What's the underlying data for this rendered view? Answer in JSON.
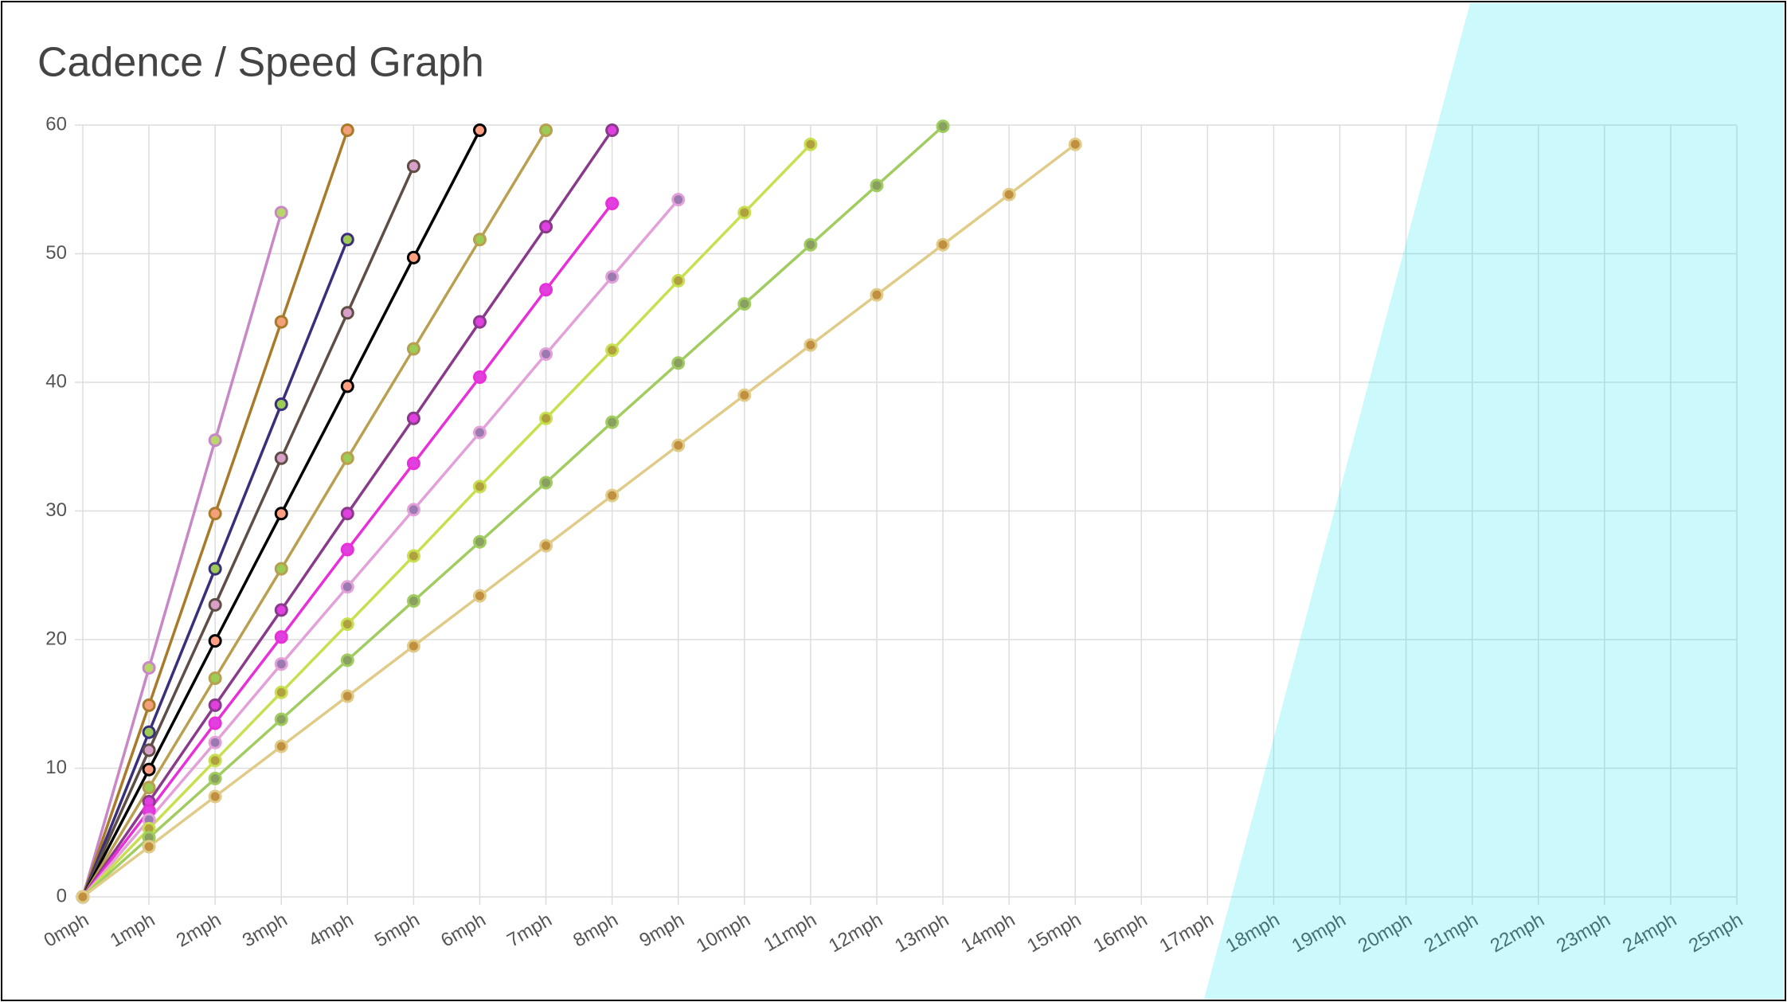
{
  "chart_data": {
    "type": "line",
    "title": "Cadence / Speed Graph",
    "categories": [
      "0mph",
      "1mph",
      "2mph",
      "3mph",
      "4mph",
      "5mph",
      "6mph",
      "7mph",
      "8mph",
      "9mph",
      "10mph",
      "11mph",
      "12mph",
      "13mph",
      "14mph",
      "15mph",
      "16mph",
      "17mph",
      "18mph",
      "19mph",
      "20mph",
      "21mph",
      "22mph",
      "23mph",
      "24mph",
      "25mph"
    ],
    "ylim": [
      0,
      60
    ],
    "yticks": [
      0,
      10,
      20,
      30,
      40,
      50,
      60
    ],
    "grid": true,
    "series": [
      {
        "color": "#c888c8",
        "point_color": "#b9d66b",
        "values": [
          0,
          17.8,
          35.5,
          53.2,
          null,
          null,
          null,
          null,
          null,
          null,
          null,
          null,
          null,
          null,
          null,
          null,
          null,
          null,
          null,
          null,
          null,
          null,
          null,
          null,
          null,
          null
        ]
      },
      {
        "color": "#a87a2a",
        "point_color": "#f2a07a",
        "values": [
          0,
          14.9,
          29.8,
          44.7,
          59.6,
          null,
          null,
          null,
          null,
          null,
          null,
          null,
          null,
          null,
          null,
          null,
          null,
          null,
          null,
          null,
          null,
          null,
          null,
          null,
          null,
          null
        ]
      },
      {
        "color": "#3a2f7a",
        "point_color": "#9ccc55",
        "values": [
          0,
          12.8,
          25.5,
          38.3,
          51.1,
          null,
          null,
          null,
          null,
          null,
          null,
          null,
          null,
          null,
          null,
          null,
          null,
          null,
          null,
          null,
          null,
          null,
          null,
          null,
          null,
          null
        ]
      },
      {
        "color": "#5e4e45",
        "point_color": "#d8a0c8",
        "values": [
          0,
          11.4,
          22.7,
          34.1,
          45.4,
          56.8,
          null,
          null,
          null,
          null,
          null,
          null,
          null,
          null,
          null,
          null,
          null,
          null,
          null,
          null,
          null,
          null,
          null,
          null,
          null,
          null
        ]
      },
      {
        "color": "#000000",
        "point_color": "#ff9e80",
        "values": [
          0,
          9.9,
          19.9,
          29.8,
          39.7,
          49.7,
          59.6,
          null,
          null,
          null,
          null,
          null,
          null,
          null,
          null,
          null,
          null,
          null,
          null,
          null,
          null,
          null,
          null,
          null,
          null,
          null
        ]
      },
      {
        "color": "#b8a050",
        "point_color": "#9ccc55",
        "values": [
          0,
          8.5,
          17.0,
          25.5,
          34.1,
          42.6,
          51.1,
          59.6,
          null,
          null,
          null,
          null,
          null,
          null,
          null,
          null,
          null,
          null,
          null,
          null,
          null,
          null,
          null,
          null,
          null,
          null
        ]
      },
      {
        "color": "#8a3a8a",
        "point_color": "#e040e0",
        "values": [
          0,
          7.4,
          14.9,
          22.3,
          29.8,
          37.2,
          44.7,
          52.1,
          59.6,
          null,
          null,
          null,
          null,
          null,
          null,
          null,
          null,
          null,
          null,
          null,
          null,
          null,
          null,
          null,
          null,
          null
        ]
      },
      {
        "color": "#e830d8",
        "point_color": "#e040e0",
        "values": [
          0,
          6.7,
          13.5,
          20.2,
          27.0,
          33.7,
          40.4,
          47.2,
          53.9,
          null,
          null,
          null,
          null,
          null,
          null,
          null,
          null,
          null,
          null,
          null,
          null,
          null,
          null,
          null,
          null,
          null
        ]
      },
      {
        "color": "#e4a0d8",
        "point_color": "#9a7ab0",
        "values": [
          0,
          6.0,
          12.0,
          18.1,
          24.1,
          30.1,
          36.1,
          42.2,
          48.2,
          54.2,
          null,
          null,
          null,
          null,
          null,
          null,
          null,
          null,
          null,
          null,
          null,
          null,
          null,
          null,
          null,
          null
        ]
      },
      {
        "color": "#c8e050",
        "point_color": "#b0a040",
        "values": [
          0,
          5.3,
          10.6,
          15.9,
          21.2,
          26.5,
          31.9,
          37.2,
          42.5,
          47.9,
          53.2,
          58.5,
          null,
          null,
          null,
          null,
          null,
          null,
          null,
          null,
          null,
          null,
          null,
          null,
          null,
          null
        ]
      },
      {
        "color": "#a0cc60",
        "point_color": "#8aa060",
        "values": [
          0,
          4.6,
          9.2,
          13.8,
          18.4,
          23.0,
          27.6,
          32.2,
          36.9,
          41.5,
          46.1,
          50.7,
          55.3,
          59.9,
          null,
          null,
          null,
          null,
          null,
          null,
          null,
          null,
          null,
          null,
          null,
          null
        ]
      },
      {
        "color": "#e0cc88",
        "point_color": "#c09040",
        "values": [
          0,
          3.9,
          7.8,
          11.7,
          15.6,
          19.5,
          23.4,
          27.3,
          31.2,
          35.1,
          39.0,
          42.9,
          46.8,
          50.7,
          54.6,
          58.5,
          null,
          null,
          null,
          null,
          null,
          null,
          null,
          null,
          null,
          null
        ]
      }
    ]
  }
}
